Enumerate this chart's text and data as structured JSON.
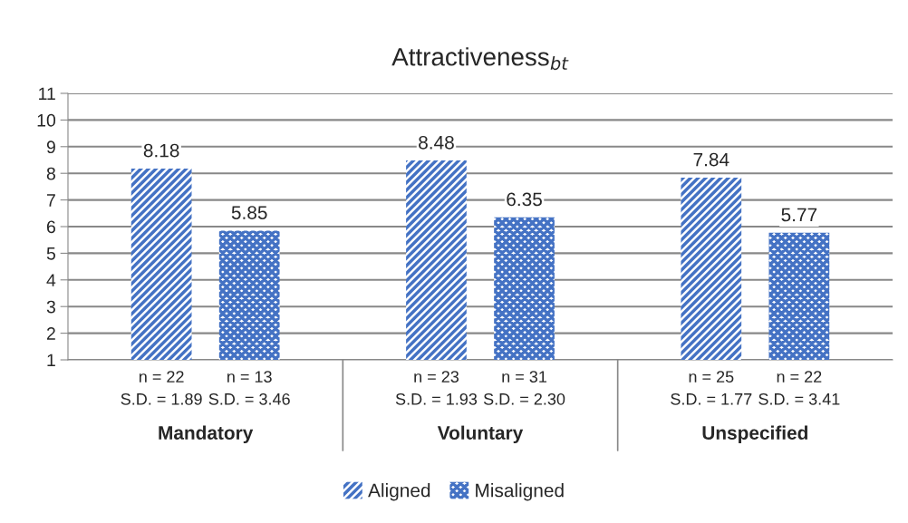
{
  "chart_data": {
    "type": "bar",
    "title": "Attractiveness$_{bt}$",
    "categories": [
      "Mandatory",
      "Voluntary",
      "Unspecified"
    ],
    "series": [
      {
        "name": "Aligned",
        "color": "#4472c4",
        "values": [
          8.18,
          8.48,
          7.84
        ]
      },
      {
        "name": "Misaligned",
        "color": "#4472c4",
        "values": [
          5.85,
          6.35,
          5.77
        ]
      }
    ],
    "ylim": [
      1,
      11
    ],
    "yticks": [
      1,
      2,
      3,
      4,
      5,
      6,
      7,
      8,
      9,
      10,
      11
    ],
    "grid": "y",
    "data_labels": true,
    "legend": "bottom",
    "annotations": [
      "n = 22\nS.D. = 1.89",
      "n = 13\nS.D. = 3.46",
      "n = 23\nS.D. = 1.93",
      "n = 31\nS.D. = 2.30",
      "n = 25\nS.D. = 1.77",
      "n = 22\nS.D. = 3.41"
    ]
  }
}
